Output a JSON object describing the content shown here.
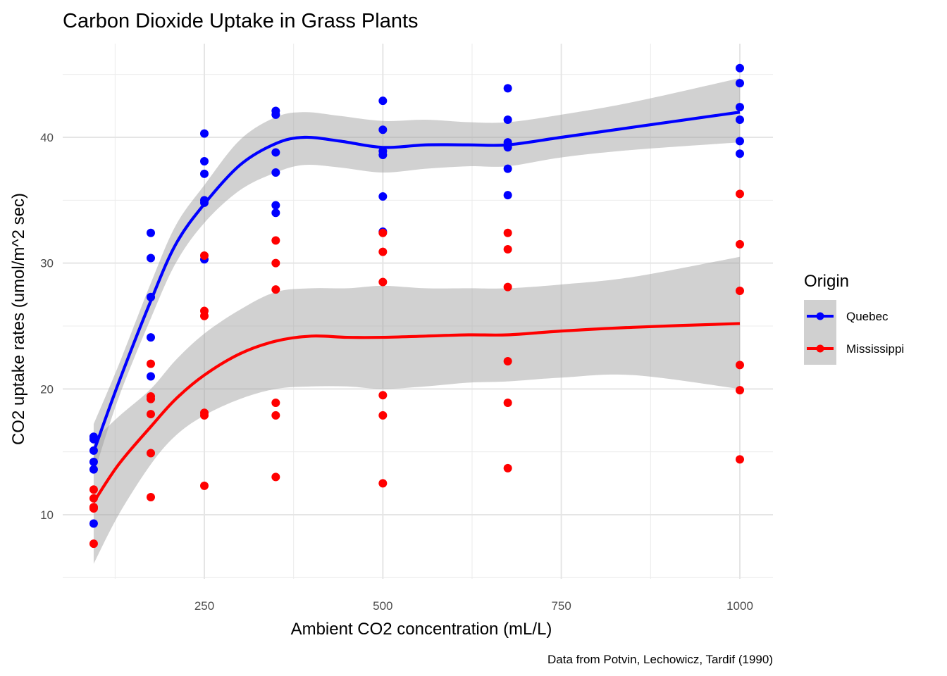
{
  "chart_data": {
    "type": "scatter",
    "title": "Carbon Dioxide Uptake in Grass Plants",
    "xlabel": "Ambient CO2 concentration (mL/L)",
    "ylabel": "CO2 uptake rates (umol/m^2 sec)",
    "caption": "Data from Potvin, Lechowicz, Tardif (1990)",
    "xlim": [
      55,
      1040
    ],
    "ylim": [
      4.9,
      47.6
    ],
    "x_ticks": [
      250,
      500,
      750,
      1000
    ],
    "x_tick_labels": [
      "250",
      "500",
      "750",
      "1000"
    ],
    "x_minor_ticks": [
      125,
      375,
      625,
      875
    ],
    "y_ticks": [
      10,
      20,
      30,
      40
    ],
    "y_tick_labels": [
      "10",
      "20",
      "30",
      "40"
    ],
    "y_minor_ticks": [
      5,
      15,
      25,
      35,
      45
    ],
    "grid": true,
    "legend": {
      "title": "Origin",
      "position": "right"
    },
    "series": [
      {
        "name": "Quebec",
        "color": "#0000ff",
        "points": {
          "x": [
            95,
            95,
            95,
            95,
            95,
            95,
            175,
            175,
            175,
            175,
            175,
            175,
            250,
            250,
            250,
            250,
            250,
            250,
            350,
            350,
            350,
            350,
            350,
            350,
            500,
            500,
            500,
            500,
            500,
            500,
            675,
            675,
            675,
            675,
            675,
            675,
            1000,
            1000,
            1000,
            1000,
            1000,
            1000
          ],
          "y": [
            16.0,
            13.6,
            16.2,
            14.2,
            9.3,
            15.1,
            30.4,
            27.3,
            32.4,
            24.1,
            27.3,
            21.0,
            34.8,
            37.1,
            40.3,
            30.3,
            35.0,
            38.1,
            37.2,
            41.8,
            42.1,
            34.6,
            38.8,
            34.0,
            35.3,
            40.6,
            42.9,
            32.5,
            38.6,
            38.9,
            39.2,
            41.4,
            43.9,
            35.4,
            37.5,
            39.6,
            39.7,
            44.3,
            45.5,
            38.7,
            42.4,
            41.4
          ]
        },
        "smooth": {
          "x": [
            95,
            130,
            175,
            210,
            250,
            300,
            350,
            390,
            440,
            500,
            560,
            620,
            675,
            750,
            850,
            1000
          ],
          "y": [
            15.0,
            20.5,
            27.0,
            31.5,
            34.7,
            37.8,
            39.5,
            40.0,
            39.7,
            39.2,
            39.4,
            39.4,
            39.4,
            40.0,
            40.8,
            42.0
          ],
          "lower": [
            13.2,
            19.3,
            25.6,
            30.0,
            33.2,
            35.8,
            37.2,
            37.8,
            37.6,
            37.2,
            37.5,
            37.7,
            37.7,
            38.4,
            39.0,
            39.6
          ],
          "upper": [
            17.2,
            21.9,
            28.4,
            33.0,
            36.2,
            39.8,
            41.6,
            42.0,
            41.7,
            41.3,
            41.4,
            41.2,
            41.2,
            41.8,
            42.8,
            44.7
          ]
        }
      },
      {
        "name": "Mississippi",
        "color": "#ff0000",
        "points": {
          "x": [
            95,
            95,
            95,
            95,
            95,
            95,
            175,
            175,
            175,
            175,
            175,
            175,
            250,
            250,
            250,
            250,
            250,
            250,
            350,
            350,
            350,
            350,
            350,
            350,
            500,
            500,
            500,
            500,
            500,
            500,
            675,
            675,
            675,
            675,
            675,
            675,
            1000,
            1000,
            1000,
            1000,
            1000,
            1000
          ],
          "y": [
            10.6,
            12.0,
            11.3,
            10.5,
            7.7,
            10.6,
            19.2,
            22.0,
            19.4,
            14.9,
            11.4,
            18.0,
            26.2,
            30.6,
            25.8,
            18.1,
            12.3,
            17.9,
            30.0,
            31.8,
            27.9,
            18.9,
            13.0,
            17.9,
            30.9,
            32.4,
            28.5,
            19.5,
            12.5,
            17.9,
            32.4,
            31.1,
            28.1,
            22.2,
            13.7,
            18.9,
            35.5,
            31.5,
            27.8,
            21.9,
            14.4,
            19.9
          ]
        },
        "smooth": {
          "x": [
            95,
            130,
            175,
            210,
            250,
            300,
            350,
            400,
            450,
            500,
            560,
            620,
            675,
            750,
            850,
            1000
          ],
          "y": [
            11.0,
            14.0,
            17.0,
            19.2,
            21.1,
            22.8,
            23.8,
            24.2,
            24.1,
            24.1,
            24.2,
            24.3,
            24.3,
            24.6,
            24.9,
            25.2
          ],
          "lower": [
            6.1,
            10.0,
            14.0,
            16.3,
            17.9,
            19.2,
            20.0,
            20.2,
            20.2,
            20.0,
            20.2,
            20.5,
            20.6,
            20.9,
            21.1,
            20.0
          ],
          "upper": [
            15.9,
            17.8,
            20.0,
            22.3,
            24.4,
            26.3,
            27.7,
            28.0,
            28.0,
            28.2,
            28.0,
            28.0,
            28.0,
            28.3,
            28.9,
            30.5
          ]
        }
      }
    ]
  }
}
